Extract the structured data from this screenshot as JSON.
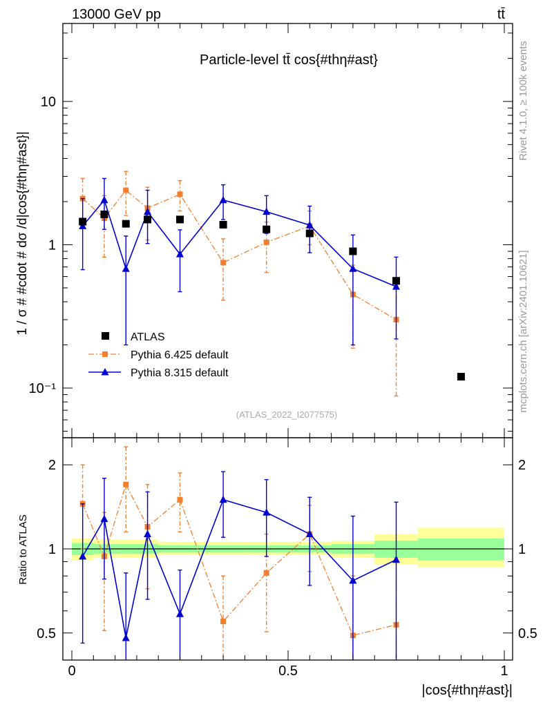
{
  "header": {
    "energy_label": "13000 GeV pp",
    "process_label": "tt̄"
  },
  "side_labels": {
    "rivet": "Rivet 4.1.0, ≥ 100k events",
    "mcplots": "mcplots.cern.ch [arXiv:2401.10621]"
  },
  "colors": {
    "atlas": "#000000",
    "pythia6": "#f07f2f",
    "pythia8": "#0000d0",
    "band_inner": "#99ff99",
    "band_outer": "#ffff99"
  },
  "chart_data": [
    {
      "type": "scatter",
      "title": "Particle-level tt̄ cos{#thη#ast}",
      "ylabel": "1 / σ # #cdot # dσ /d|cos{#thη#ast}|",
      "xlabel": "",
      "yscale": "log",
      "xlim": [
        0,
        1
      ],
      "ylim": [
        0.045,
        35
      ],
      "yticks": [
        {
          "value": 0.1,
          "label": "10⁻¹"
        },
        {
          "value": 1,
          "label": "1"
        },
        {
          "value": 10,
          "label": "10"
        }
      ],
      "reference_label": "(ATLAS_2022_I2077575)",
      "legend": {
        "position": "bottom-left",
        "entries": [
          "ATLAS",
          "Pythia 6.425 default",
          "Pythia 8.315 default"
        ]
      },
      "series": [
        {
          "name": "ATLAS",
          "marker": "square",
          "x": [
            0.025,
            0.075,
            0.125,
            0.175,
            0.25,
            0.35,
            0.45,
            0.55,
            0.65,
            0.75,
            0.9
          ],
          "y": [
            1.45,
            1.63,
            1.4,
            1.5,
            1.5,
            1.38,
            1.28,
            1.2,
            0.9,
            0.56,
            0.12
          ]
        },
        {
          "name": "Pythia 6.425 default",
          "marker": "small-square",
          "line": "dash-dot",
          "x": [
            0.025,
            0.075,
            0.125,
            0.175,
            0.25,
            0.35,
            0.45,
            0.55,
            0.65,
            0.75
          ],
          "y": [
            2.1,
            1.53,
            2.4,
            1.8,
            2.25,
            0.75,
            1.04,
            1.35,
            0.45,
            0.3
          ],
          "y_low": [
            1.45,
            0.82,
            1.6,
            1.08,
            1.72,
            0.41,
            0.64,
            1.0,
            0.19,
            0.088
          ],
          "y_high": [
            2.9,
            2.2,
            3.25,
            2.52,
            2.8,
            1.1,
            1.44,
            1.72,
            0.72,
            0.52
          ]
        },
        {
          "name": "Pythia 8.315 default",
          "marker": "triangle",
          "line": "solid",
          "x": [
            0.025,
            0.075,
            0.125,
            0.175,
            0.25,
            0.35,
            0.45,
            0.55,
            0.65,
            0.75
          ],
          "y": [
            1.35,
            2.05,
            0.68,
            1.7,
            0.86,
            2.05,
            1.7,
            1.37,
            0.68,
            0.51
          ],
          "y_low": [
            0.67,
            1.28,
            0.2,
            1.02,
            0.47,
            1.5,
            1.2,
            0.88,
            0.2,
            0.22
          ],
          "y_high": [
            2.1,
            2.9,
            1.15,
            2.4,
            1.27,
            2.62,
            2.2,
            1.86,
            1.17,
            0.82
          ]
        }
      ]
    },
    {
      "type": "scatter",
      "title": "",
      "ylabel": "Ratio to ATLAS",
      "xlabel": "|cos{#thη#ast}|",
      "yscale": "log",
      "xlim": [
        0,
        1
      ],
      "ylim": [
        0.4,
        2.5
      ],
      "yticks": [
        {
          "value": 0.5,
          "label": "0.5"
        },
        {
          "value": 1,
          "label": "1"
        },
        {
          "value": 2,
          "label": "2"
        }
      ],
      "xticks": [
        {
          "value": 0,
          "label": "0"
        },
        {
          "value": 0.5,
          "label": "0.5"
        },
        {
          "value": 1,
          "label": "1"
        }
      ],
      "bands": {
        "edges": [
          0,
          0.05,
          0.1,
          0.15,
          0.2,
          0.3,
          0.4,
          0.5,
          0.6,
          0.7,
          0.8,
          1.0
        ],
        "inner_low": [
          0.95,
          0.96,
          0.96,
          0.96,
          0.97,
          0.97,
          0.97,
          0.97,
          0.96,
          0.93,
          0.91
        ],
        "inner_high": [
          1.05,
          1.04,
          1.04,
          1.04,
          1.03,
          1.03,
          1.03,
          1.03,
          1.04,
          1.07,
          1.09
        ],
        "outer_low": [
          0.91,
          0.93,
          0.93,
          0.93,
          0.95,
          0.95,
          0.95,
          0.95,
          0.93,
          0.88,
          0.86
        ],
        "outer_high": [
          1.09,
          1.08,
          1.08,
          1.08,
          1.06,
          1.06,
          1.06,
          1.06,
          1.07,
          1.13,
          1.19
        ]
      },
      "series": [
        {
          "name": "Pythia 6.425 default",
          "marker": "small-square",
          "line": "dash-dot",
          "x": [
            0.025,
            0.075,
            0.125,
            0.175,
            0.25,
            0.35,
            0.45,
            0.55,
            0.65,
            0.75
          ],
          "y": [
            1.45,
            0.94,
            1.7,
            1.2,
            1.5,
            0.55,
            0.82,
            1.13,
            0.49,
            0.535
          ],
          "y_low": [
            1.0,
            0.51,
            1.15,
            0.72,
            1.15,
            0.31,
            0.505,
            0.83,
            0.21,
            0.16
          ],
          "y_high": [
            2.0,
            1.35,
            2.32,
            1.7,
            1.87,
            0.8,
            1.13,
            1.43,
            0.8,
            0.93
          ]
        },
        {
          "name": "Pythia 8.315 default",
          "marker": "triangle",
          "line": "solid",
          "x": [
            0.025,
            0.075,
            0.125,
            0.175,
            0.25,
            0.35,
            0.45,
            0.55,
            0.65,
            0.75
          ],
          "y": [
            0.94,
            1.28,
            0.48,
            1.13,
            0.585,
            1.5,
            1.35,
            1.13,
            0.77,
            0.915
          ],
          "y_low": [
            0.46,
            0.78,
            0.14,
            0.66,
            0.32,
            1.1,
            0.94,
            0.74,
            0.22,
            0.39
          ],
          "y_high": [
            1.45,
            1.79,
            0.82,
            1.6,
            0.84,
            1.89,
            1.77,
            1.53,
            1.31,
            1.47
          ]
        }
      ]
    }
  ]
}
